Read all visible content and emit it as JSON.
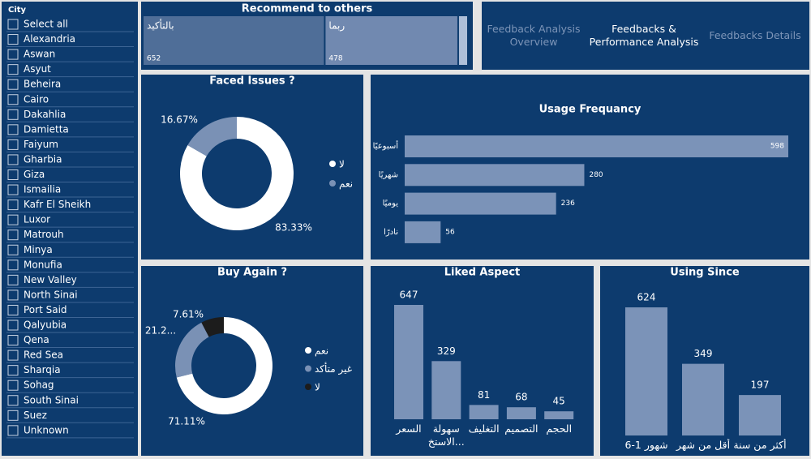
{
  "slicer": {
    "title": "City",
    "items": [
      "Select all",
      "Alexandria",
      "Aswan",
      "Asyut",
      "Beheira",
      "Cairo",
      "Dakahlia",
      "Damietta",
      "Faiyum",
      "Gharbia",
      "Giza",
      "Ismailia",
      "Kafr El Sheikh",
      "Luxor",
      "Matrouh",
      "Minya",
      "Monufia",
      "New Valley",
      "North Sinai",
      "Port Said",
      "Qalyubia",
      "Qena",
      "Red Sea",
      "Sharqia",
      "Sohag",
      "South Sinai",
      "Suez",
      "Unknown"
    ]
  },
  "nav": {
    "items": [
      "Feedback Analysis Overview",
      "Feedbacks & Performance Analysis",
      "Feedbacks Details"
    ]
  },
  "chart_data": [
    {
      "type": "treemap",
      "title": "Recommend to others",
      "categories": [
        "بالتأكيد",
        "ربما",
        null
      ],
      "values": [
        652,
        478,
        35
      ],
      "colors": [
        "#4f6e98",
        "#7189b0",
        "#aebfd8"
      ]
    },
    {
      "type": "donut",
      "title": "Faced Issues ?",
      "categories": [
        "لا",
        "نعم"
      ],
      "values": [
        83.33,
        16.67
      ],
      "value_labels": [
        "83.33%",
        "16.67%"
      ],
      "colors": [
        "#ffffff",
        "#7a91b5"
      ]
    },
    {
      "type": "hbar",
      "title": "Usage Frequancy",
      "categories": [
        "أسبوعيًا",
        "شهريًا",
        "يوميًا",
        "نادرًا"
      ],
      "values": [
        598,
        280,
        236,
        56
      ],
      "color": "#7b93b8"
    },
    {
      "type": "donut",
      "title": "Buy Again ?",
      "categories": [
        "نعم",
        "غير متأكد",
        "لا"
      ],
      "values": [
        71.11,
        21.28,
        7.61
      ],
      "value_labels": [
        "71.11%",
        "21.2...",
        "7.61%"
      ],
      "colors": [
        "#ffffff",
        "#7a91b5",
        "#1c1c1c"
      ]
    },
    {
      "type": "bar",
      "title": "Liked Aspect",
      "categories": [
        "السعر",
        "سهولة الاستخ...",
        "التغليف",
        "التصميم",
        "الحجم"
      ],
      "values": [
        647,
        329,
        81,
        68,
        45
      ],
      "color": "#7b93b8"
    },
    {
      "type": "bar",
      "title": "Using Since",
      "categories": [
        "6-1 شهور",
        "أقل من شهر",
        "أكثر من سنة"
      ],
      "values": [
        624,
        349,
        197
      ],
      "color": "#7b93b8"
    }
  ]
}
